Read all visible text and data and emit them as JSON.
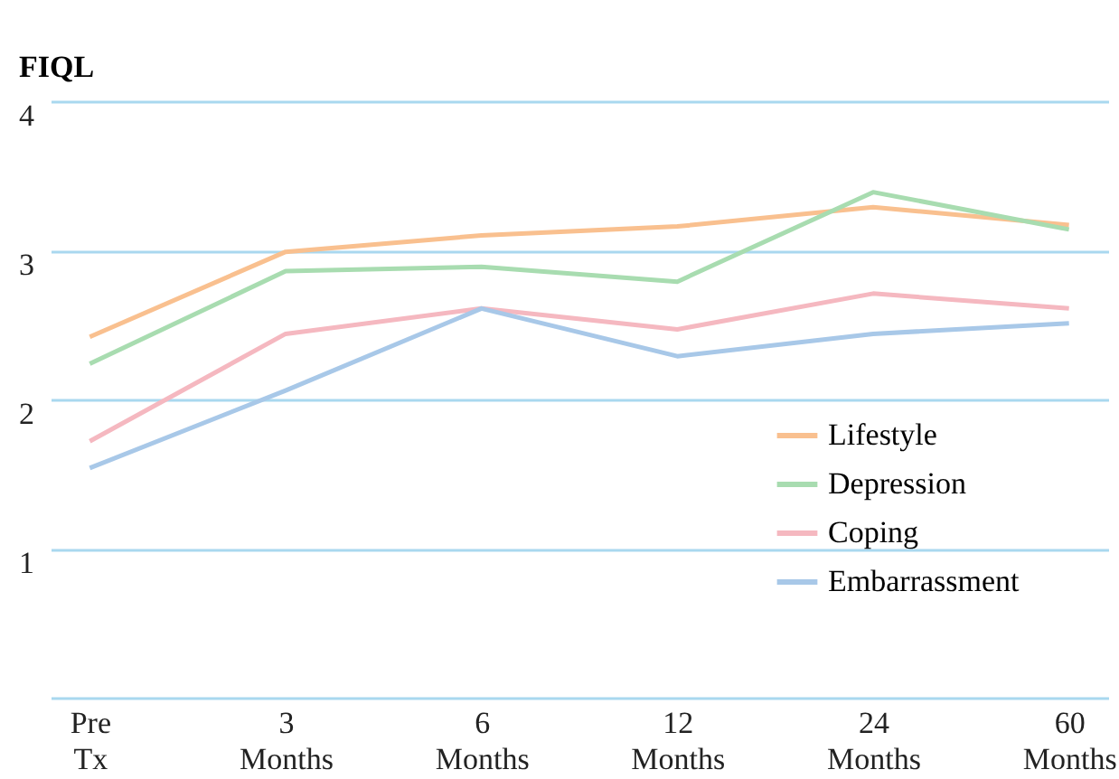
{
  "chart_data": {
    "type": "line",
    "ylabel": "FIQL",
    "categories": [
      "Pre Tx",
      "3 Months",
      "6 Months",
      "12 Months",
      "24 Months",
      "60 Months"
    ],
    "series": [
      {
        "name": "Lifestyle",
        "color": "#f9c08f",
        "values": [
          2.42,
          2.99,
          3.1,
          3.16,
          3.29,
          3.17
        ]
      },
      {
        "name": "Depression",
        "color": "#a8dcb0",
        "values": [
          2.24,
          2.86,
          2.89,
          2.79,
          3.39,
          3.14
        ]
      },
      {
        "name": "Coping",
        "color": "#f5b8c0",
        "values": [
          1.72,
          2.44,
          2.61,
          2.47,
          2.71,
          2.61
        ]
      },
      {
        "name": "Embarrassment",
        "color": "#a8c8e8",
        "values": [
          1.54,
          2.06,
          2.61,
          2.29,
          2.44,
          2.51
        ]
      }
    ],
    "ylim": [
      0,
      4
    ],
    "yticks": [
      {
        "value": 0,
        "label": null
      },
      1,
      2,
      3,
      4
    ],
    "grid": "y",
    "legend": "bottom right",
    "marker": "none",
    "line_style": "solid"
  }
}
